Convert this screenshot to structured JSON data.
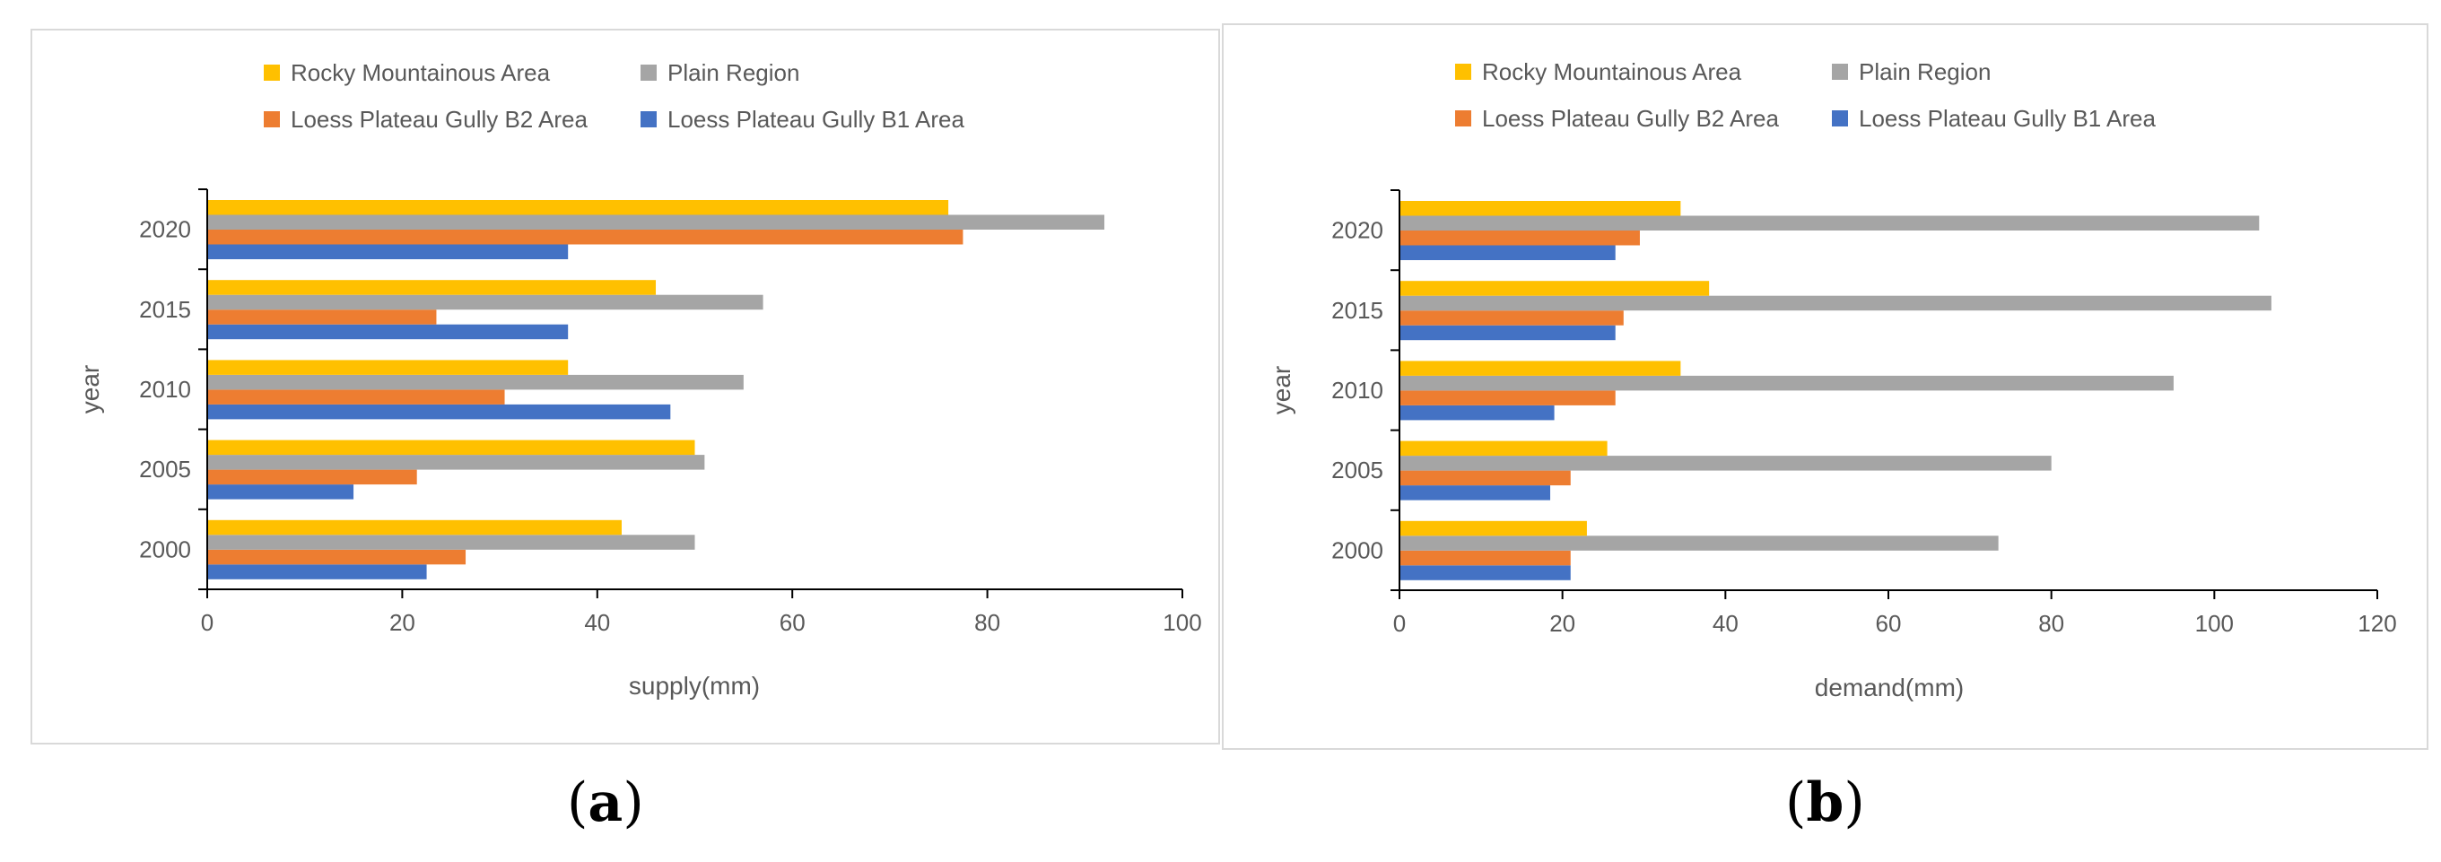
{
  "chart_data": [
    {
      "type": "bar",
      "orientation": "horizontal",
      "categories": [
        "2000",
        "2005",
        "2010",
        "2015",
        "2020"
      ],
      "series": [
        {
          "name": "Loess Plateau Gully B1 Area",
          "color": "#4472c4",
          "values": [
            22.5,
            15.0,
            47.5,
            37.0,
            37.0
          ]
        },
        {
          "name": "Loess Plateau Gully B2 Area",
          "color": "#ed7d31",
          "values": [
            26.5,
            21.5,
            30.5,
            23.5,
            77.5
          ]
        },
        {
          "name": "Plain Region",
          "color": "#a5a5a5",
          "values": [
            50.0,
            51.0,
            55.0,
            57.0,
            92.0
          ]
        },
        {
          "name": "Rocky Mountainous Area",
          "color": "#ffc000",
          "values": [
            42.5,
            50.0,
            37.0,
            46.0,
            76.0
          ]
        }
      ],
      "legend_order": [
        "Rocky Mountainous Area",
        "Plain Region",
        "Loess Plateau Gully B2 Area",
        "Loess Plateau Gully B1 Area"
      ],
      "xlabel": "supply(mm)",
      "ylabel": "year",
      "xlim": [
        0,
        100
      ],
      "xticks": [
        0,
        20,
        40,
        60,
        80,
        100
      ],
      "caption": "a",
      "legend_position": "top"
    },
    {
      "type": "bar",
      "orientation": "horizontal",
      "categories": [
        "2000",
        "2005",
        "2010",
        "2015",
        "2020"
      ],
      "series": [
        {
          "name": "Loess Plateau Gully B1 Area",
          "color": "#4472c4",
          "values": [
            21.0,
            18.5,
            19.0,
            26.5,
            26.5
          ]
        },
        {
          "name": "Loess Plateau Gully B2 Area",
          "color": "#ed7d31",
          "values": [
            21.0,
            21.0,
            26.5,
            27.5,
            29.5
          ]
        },
        {
          "name": "Plain Region",
          "color": "#a5a5a5",
          "values": [
            73.5,
            80.0,
            95.0,
            107.0,
            105.5
          ]
        },
        {
          "name": "Rocky Mountainous Area",
          "color": "#ffc000",
          "values": [
            23.0,
            25.5,
            34.5,
            38.0,
            34.5
          ]
        }
      ],
      "legend_order": [
        "Rocky Mountainous Area",
        "Plain Region",
        "Loess Plateau Gully B2 Area",
        "Loess Plateau Gully B1 Area"
      ],
      "xlabel": "demand(mm)",
      "ylabel": "year",
      "xlim": [
        0,
        120
      ],
      "xticks": [
        0,
        20,
        40,
        60,
        80,
        100,
        120
      ],
      "caption": "b",
      "legend_position": "top"
    }
  ]
}
